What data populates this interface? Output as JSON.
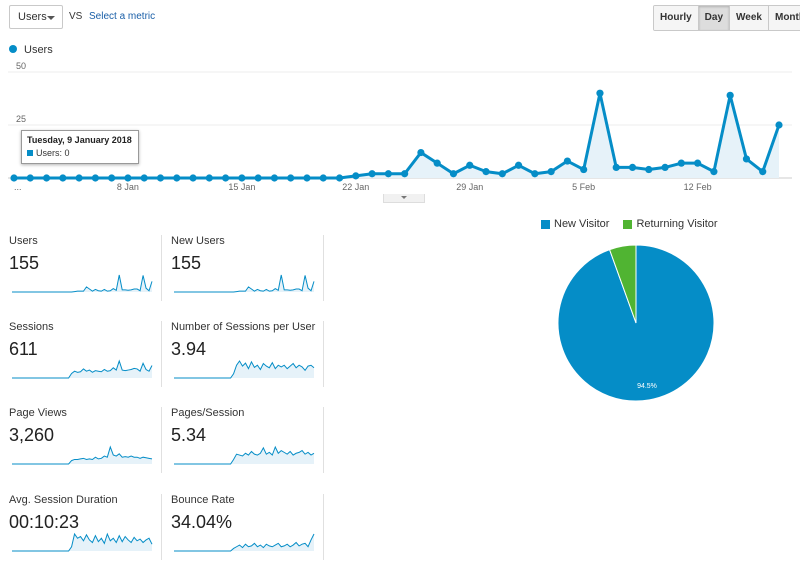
{
  "toolbar": {
    "metric_selected": "Users",
    "vs_label": "VS",
    "select_metric_label": "Select a metric",
    "periods": [
      "Hourly",
      "Day",
      "Week",
      "Month"
    ],
    "active_period": "Day"
  },
  "legend": {
    "series_label": "Users",
    "color": "#058dc7"
  },
  "tooltip": {
    "date": "Tuesday, 9 January 2018",
    "value_text": "Users: 0"
  },
  "chart_data": {
    "type": "area",
    "title": "",
    "series": [
      {
        "name": "Users",
        "color": "#058dc7",
        "values": [
          0,
          0,
          0,
          0,
          0,
          0,
          0,
          0,
          0,
          0,
          0,
          0,
          0,
          0,
          0,
          0,
          0,
          0,
          0,
          0,
          0,
          1,
          2,
          2,
          2,
          12,
          7,
          2,
          6,
          3,
          2,
          6,
          2,
          3,
          8,
          4,
          40,
          5,
          5,
          4,
          5,
          7,
          7,
          3,
          39,
          9,
          3,
          25
        ]
      }
    ],
    "x_ticks": [
      {
        "index": 0,
        "label": "..."
      },
      {
        "index": 7,
        "label": "8 Jan"
      },
      {
        "index": 14,
        "label": "15 Jan"
      },
      {
        "index": 21,
        "label": "22 Jan"
      },
      {
        "index": 28,
        "label": "29 Jan"
      },
      {
        "index": 35,
        "label": "5 Feb"
      },
      {
        "index": 42,
        "label": "12 Feb"
      }
    ],
    "y_ticks": [
      {
        "value": 25,
        "label": "25"
      },
      {
        "value": 50,
        "label": "50"
      }
    ],
    "ylim": [
      0,
      50
    ],
    "grid": true
  },
  "metrics": [
    {
      "label": "Users",
      "value": "155",
      "spark": [
        0,
        0,
        0,
        0,
        0,
        0,
        0,
        0,
        0,
        0,
        0,
        0,
        0,
        0,
        0,
        0,
        0,
        0,
        0,
        0,
        0,
        1,
        2,
        2,
        2,
        12,
        7,
        2,
        6,
        3,
        2,
        6,
        2,
        3,
        8,
        4,
        40,
        5,
        5,
        4,
        5,
        7,
        7,
        3,
        39,
        9,
        3,
        25
      ]
    },
    {
      "label": "New Users",
      "value": "155",
      "spark": [
        0,
        0,
        0,
        0,
        0,
        0,
        0,
        0,
        0,
        0,
        0,
        0,
        0,
        0,
        0,
        0,
        0,
        0,
        0,
        0,
        0,
        1,
        2,
        2,
        2,
        12,
        7,
        2,
        6,
        3,
        2,
        6,
        2,
        3,
        8,
        4,
        40,
        5,
        5,
        4,
        5,
        7,
        7,
        3,
        39,
        9,
        3,
        25
      ]
    },
    {
      "label": "Sessions",
      "value": "611",
      "spark": [
        0,
        0,
        0,
        0,
        0,
        0,
        0,
        0,
        0,
        0,
        0,
        0,
        0,
        0,
        0,
        0,
        0,
        0,
        0,
        0,
        8,
        12,
        10,
        11,
        16,
        12,
        14,
        10,
        13,
        12,
        11,
        15,
        12,
        13,
        18,
        14,
        30,
        14,
        13,
        14,
        15,
        17,
        16,
        12,
        26,
        15,
        12,
        22
      ]
    },
    {
      "label": "Number of Sessions per User",
      "value": "3.94",
      "spark": [
        0,
        0,
        0,
        0,
        0,
        0,
        0,
        0,
        0,
        0,
        0,
        0,
        0,
        0,
        0,
        0,
        0,
        0,
        0,
        0,
        10,
        30,
        40,
        28,
        35,
        22,
        38,
        25,
        30,
        20,
        34,
        28,
        24,
        36,
        22,
        30,
        26,
        30,
        22,
        28,
        34,
        24,
        30,
        26,
        18,
        28,
        30,
        24
      ]
    },
    {
      "label": "Page Views",
      "value": "3,260",
      "spark": [
        0,
        0,
        0,
        0,
        0,
        0,
        0,
        0,
        0,
        0,
        0,
        0,
        0,
        0,
        0,
        0,
        0,
        0,
        0,
        0,
        6,
        8,
        8,
        9,
        10,
        8,
        9,
        8,
        12,
        9,
        10,
        14,
        12,
        30,
        16,
        14,
        18,
        12,
        13,
        12,
        14,
        12,
        12,
        10,
        12,
        11,
        10,
        9
      ]
    },
    {
      "label": "Pages/Session",
      "value": "5.34",
      "spark": [
        0,
        0,
        0,
        0,
        0,
        0,
        0,
        0,
        0,
        0,
        0,
        0,
        0,
        0,
        0,
        0,
        0,
        0,
        0,
        0,
        10,
        22,
        20,
        18,
        24,
        20,
        28,
        22,
        20,
        24,
        36,
        22,
        26,
        20,
        38,
        24,
        30,
        26,
        22,
        28,
        20,
        24,
        26,
        30,
        22,
        26,
        20,
        24
      ]
    },
    {
      "label": "Avg. Session Duration",
      "value": "00:10:23",
      "spark": [
        0,
        0,
        0,
        0,
        0,
        0,
        0,
        0,
        0,
        0,
        0,
        0,
        0,
        0,
        0,
        0,
        0,
        0,
        0,
        0,
        10,
        40,
        30,
        34,
        24,
        38,
        26,
        20,
        36,
        22,
        30,
        18,
        40,
        24,
        30,
        20,
        36,
        22,
        34,
        26,
        20,
        32,
        24,
        28,
        20,
        26,
        30,
        16
      ]
    },
    {
      "label": "Bounce Rate",
      "value": "34.04%",
      "spark": [
        0,
        0,
        0,
        0,
        0,
        0,
        0,
        0,
        0,
        0,
        0,
        0,
        0,
        0,
        0,
        0,
        0,
        0,
        0,
        0,
        6,
        10,
        14,
        8,
        16,
        10,
        12,
        18,
        10,
        14,
        8,
        16,
        12,
        10,
        14,
        18,
        10,
        12,
        16,
        10,
        14,
        20,
        12,
        16,
        18,
        10,
        26,
        40
      ]
    }
  ],
  "pie": {
    "legend": [
      {
        "label": "New Visitor",
        "color": "#058dc7"
      },
      {
        "label": "Returning Visitor",
        "color": "#50b432"
      }
    ],
    "slices": [
      {
        "label": "New Visitor",
        "value": 94.5,
        "color": "#058dc7"
      },
      {
        "label": "Returning Visitor",
        "value": 5.5,
        "color": "#50b432"
      }
    ],
    "slice_label": "94.5%"
  }
}
